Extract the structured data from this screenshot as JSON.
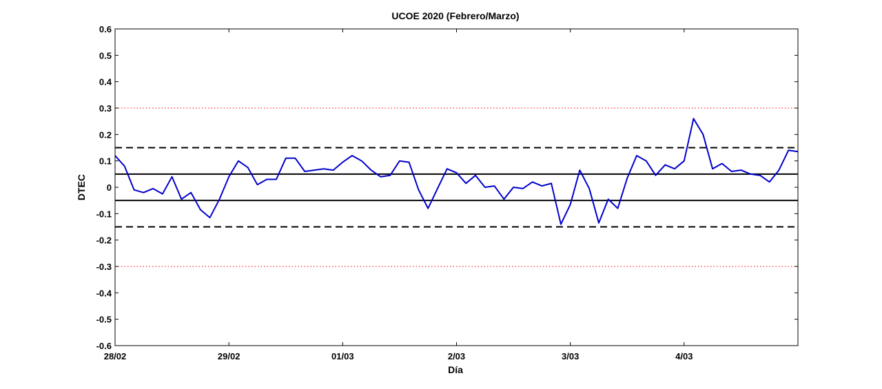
{
  "chart_data": {
    "type": "line",
    "title": "UCOE 2020 (Febrero/Marzo)",
    "xlabel": "Día",
    "ylabel": "DTEC",
    "xlim": [
      0,
      6
    ],
    "ylim": [
      -0.6,
      0.6
    ],
    "yticks": [
      -0.6,
      -0.5,
      -0.4,
      -0.3,
      -0.2,
      -0.1,
      0,
      0.1,
      0.2,
      0.3,
      0.4,
      0.5,
      0.6
    ],
    "ytick_labels": [
      "-0.6",
      "-0.5",
      "-0.4",
      "-0.3",
      "-0.2",
      "-0.1",
      "0",
      "0.1",
      "0.2",
      "0.3",
      "0.4",
      "0.5",
      "0.6"
    ],
    "xticks": [
      0,
      1,
      2,
      3,
      4,
      5
    ],
    "xtick_labels": [
      "28/02",
      "29/02",
      "01/03",
      "2/03",
      "3/03",
      "4/03"
    ],
    "grid": false,
    "series": [
      {
        "color": "#0000cc",
        "x": [
          0,
          0.083,
          0.167,
          0.25,
          0.333,
          0.417,
          0.5,
          0.583,
          0.667,
          0.75,
          0.833,
          0.917,
          1.0,
          1.083,
          1.167,
          1.25,
          1.333,
          1.417,
          1.5,
          1.583,
          1.667,
          1.75,
          1.833,
          1.917,
          2.0,
          2.083,
          2.167,
          2.25,
          2.333,
          2.417,
          2.5,
          2.583,
          2.667,
          2.75,
          2.833,
          2.917,
          3.0,
          3.083,
          3.167,
          3.25,
          3.333,
          3.417,
          3.5,
          3.583,
          3.667,
          3.75,
          3.833,
          3.917,
          4.0,
          4.083,
          4.167,
          4.25,
          4.333,
          4.417,
          4.5,
          4.583,
          4.667,
          4.75,
          4.833,
          4.917,
          5.0,
          5.083,
          5.167,
          5.25,
          5.333,
          5.417,
          5.5,
          5.583,
          5.667,
          5.75,
          5.833,
          5.917,
          6.0
        ],
        "y": [
          0.12,
          0.08,
          -0.01,
          -0.02,
          -0.005,
          -0.025,
          0.04,
          -0.045,
          -0.02,
          -0.085,
          -0.115,
          -0.045,
          0.04,
          0.1,
          0.075,
          0.01,
          0.03,
          0.03,
          0.11,
          0.11,
          0.06,
          0.065,
          0.07,
          0.065,
          0.095,
          0.12,
          0.1,
          0.065,
          0.04,
          0.045,
          0.1,
          0.095,
          -0.01,
          -0.08,
          -0.005,
          0.07,
          0.055,
          0.015,
          0.045,
          0.0,
          0.005,
          -0.045,
          0.0,
          -0.005,
          0.02,
          0.005,
          0.015,
          -0.14,
          -0.065,
          0.065,
          -0.005,
          -0.135,
          -0.045,
          -0.08,
          0.035,
          0.12,
          0.1,
          0.045,
          0.085,
          0.07,
          0.1,
          0.26,
          0.2,
          0.07,
          0.09,
          0.06,
          0.065,
          0.05,
          0.045,
          0.02,
          0.065,
          0.14,
          0.135
        ]
      }
    ],
    "reference_lines": [
      {
        "y": 0.05,
        "style": "solid",
        "color": "#000000"
      },
      {
        "y": -0.05,
        "style": "solid",
        "color": "#000000"
      },
      {
        "y": 0.15,
        "style": "dashed",
        "color": "#000000"
      },
      {
        "y": -0.15,
        "style": "dashed",
        "color": "#000000"
      },
      {
        "y": 0.3,
        "style": "dotted",
        "color": "#ff0000"
      },
      {
        "y": -0.3,
        "style": "dotted",
        "color": "#ff0000"
      }
    ]
  }
}
